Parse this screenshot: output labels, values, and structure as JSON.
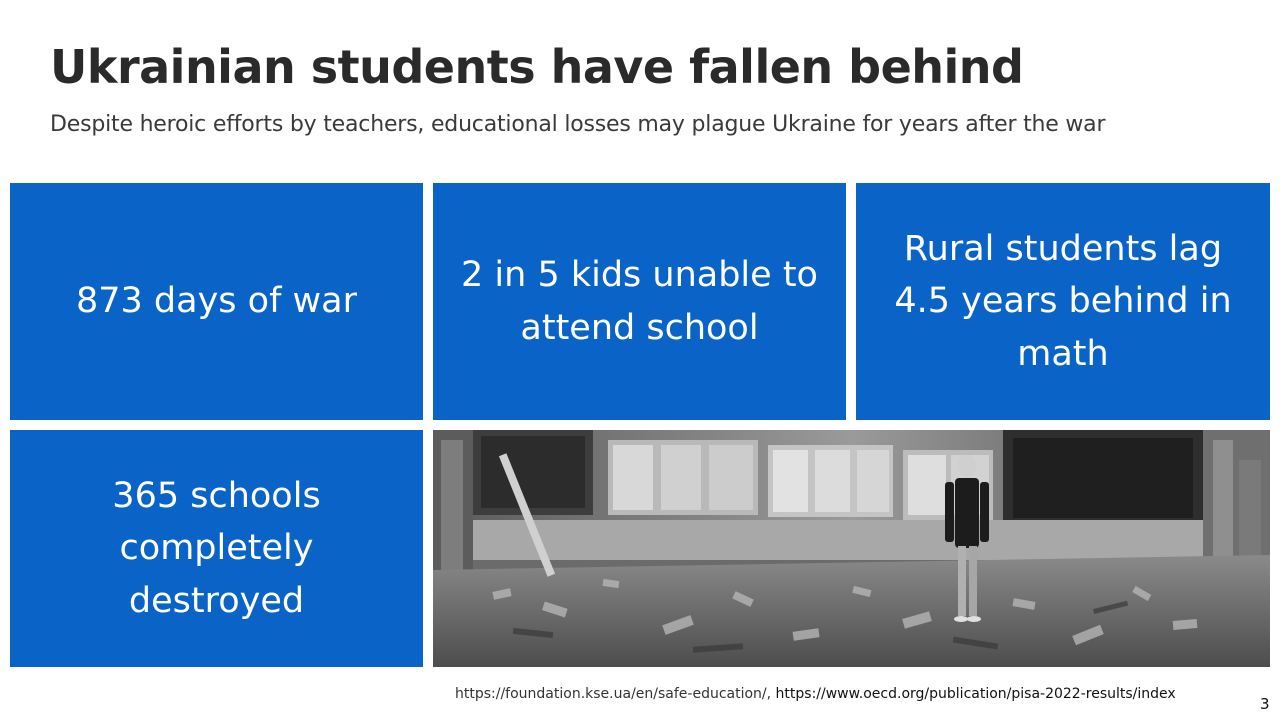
{
  "slide": {
    "title": "Ukrainian students have fallen behind",
    "subtitle": "Despite heroic efforts by teachers, educational losses may plague Ukraine for years after the war",
    "accent_color": "#0a63c6",
    "stats": [
      {
        "text": "873 days of war"
      },
      {
        "text": "2 in 5 kids unable to attend school"
      },
      {
        "text": "Rural students lag 4.5 years behind in math"
      },
      {
        "text": "365 schools completely destroyed"
      }
    ],
    "photo": {
      "icon": "destroyed-classroom-photo"
    },
    "sources": {
      "source_1": "https://foundation.kse.ua/en/safe-education/, ",
      "source_2": "https://www.oecd.org/publication/pisa-2022-results/index"
    },
    "page_number": "3"
  }
}
